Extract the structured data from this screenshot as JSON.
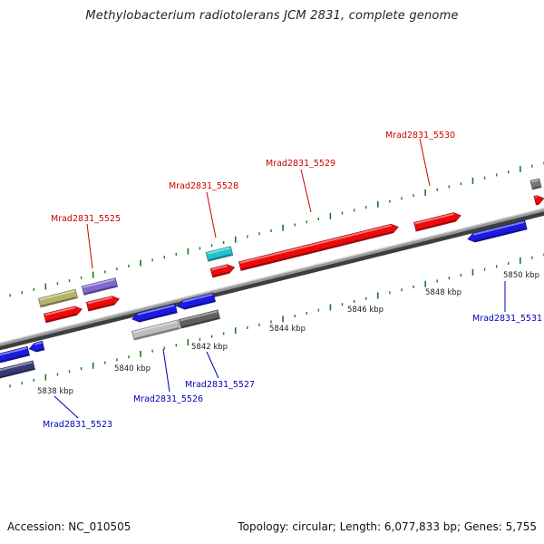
{
  "title": "Methylobacterium radiotolerans JCM 2831, complete genome",
  "footer": {
    "accession": "Accession: NC_010505",
    "topology": "Topology: circular; Length: 6,077,833 bp; Genes: 5,755"
  },
  "colors": {
    "forward_label": "#cc0000",
    "reverse_label": "#0000bb",
    "backbone": "#888888",
    "tick": "#1a7a1a"
  },
  "scale_labels": [
    "5838 kbp",
    "5840 kbp",
    "5842 kbp",
    "5844 kbp",
    "5846 kbp",
    "5848 kbp",
    "5850 kbp"
  ],
  "gene_labels": {
    "top": [
      "Mrad2831_5525",
      "Mrad2831_5528",
      "Mrad2831_5529",
      "Mrad2831_5530"
    ],
    "bottom": [
      "Mrad2831_5523",
      "Mrad2831_5526",
      "Mrad2831_5527",
      "Mrad2831_5531"
    ]
  }
}
